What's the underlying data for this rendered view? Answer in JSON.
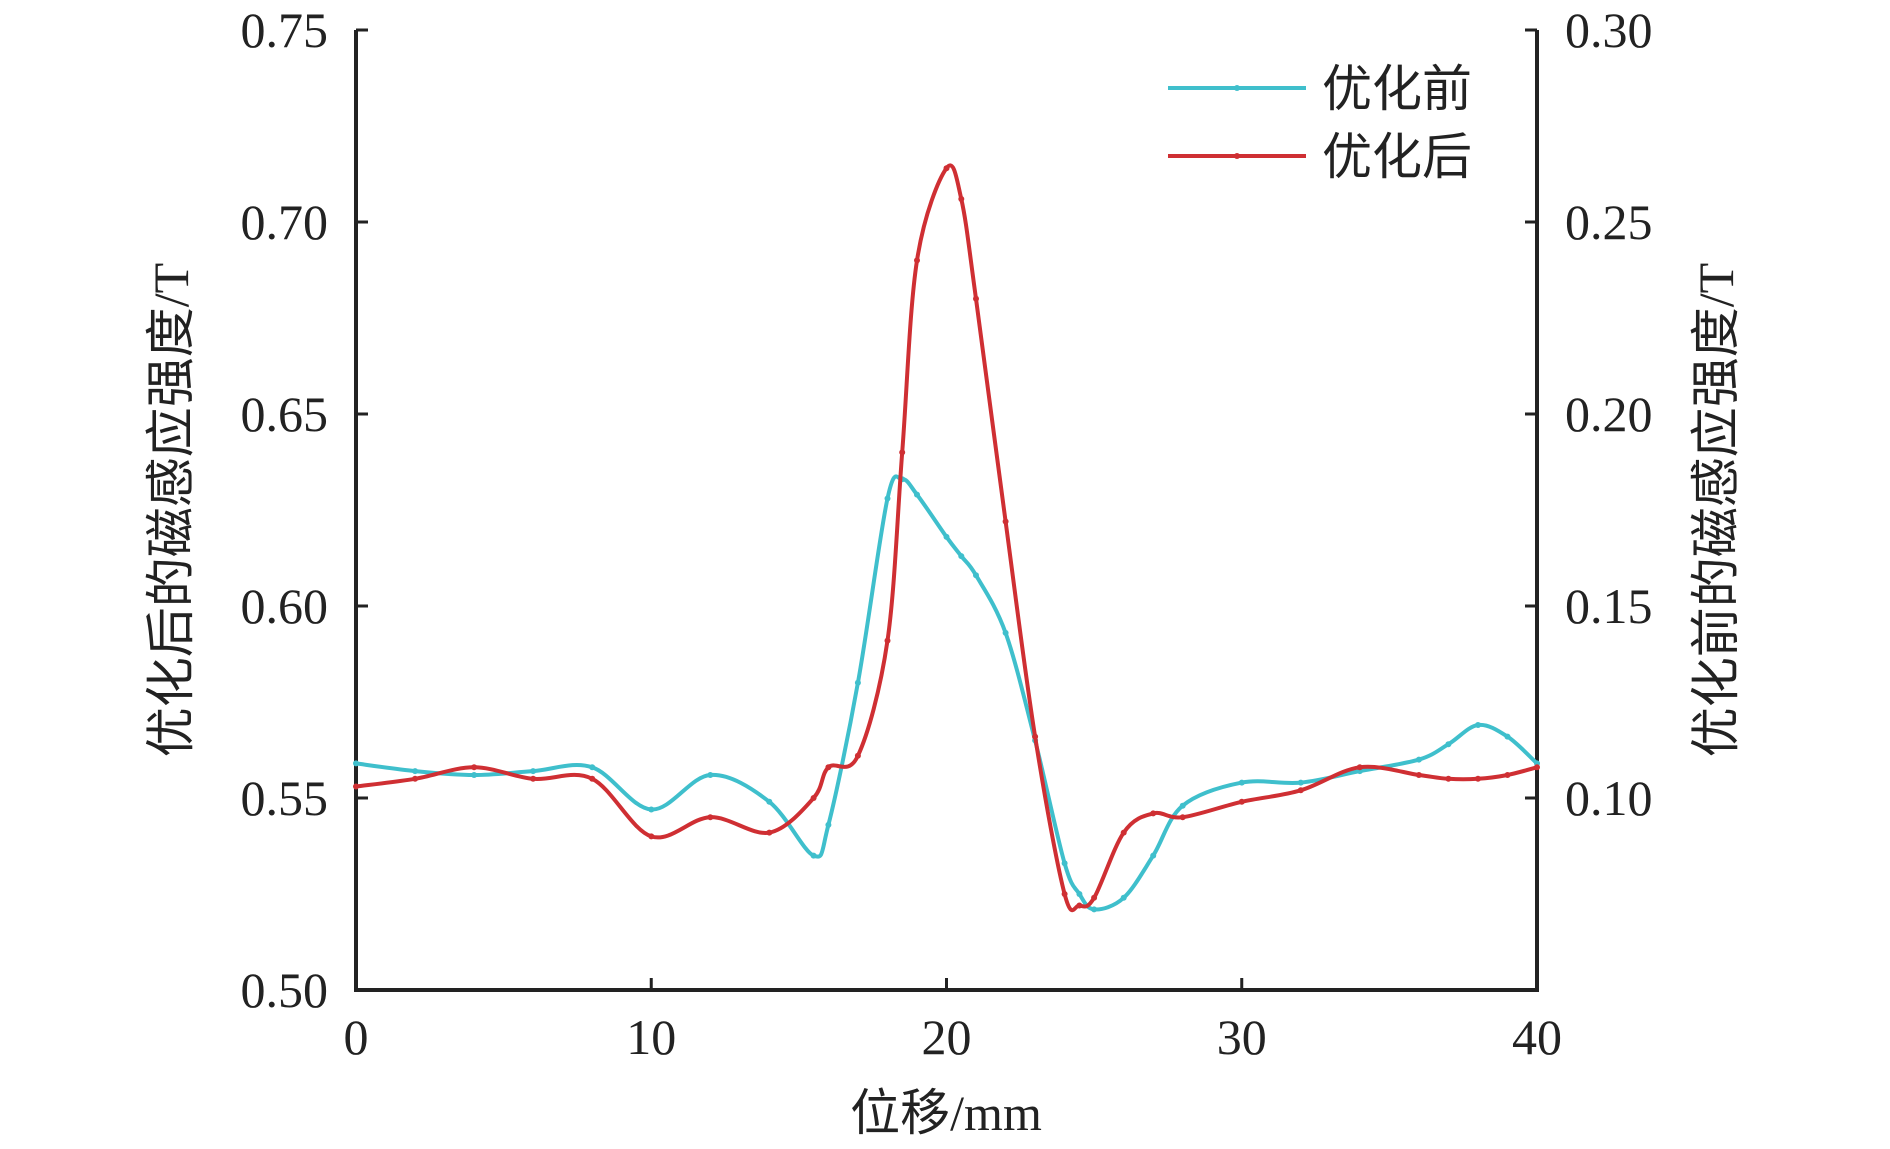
{
  "chart_data": {
    "type": "line",
    "x": [
      0,
      2,
      4,
      6,
      8,
      10,
      12,
      14,
      15.5,
      16,
      17,
      18,
      18.5,
      19,
      20,
      20.5,
      21,
      22,
      23,
      24,
      24.5,
      25,
      26,
      27,
      28,
      30,
      32,
      34,
      36,
      37,
      38,
      39,
      40
    ],
    "xlabel": "位移/mm",
    "ylabel": "优化后的磁感应强度/T",
    "y2label": "优化前的磁感应强度/T",
    "xlim": [
      0,
      40
    ],
    "ylim": [
      0.5,
      0.75
    ],
    "y2lim": [
      0.05,
      0.3
    ],
    "xticks": [
      "0",
      "10",
      "20",
      "30",
      "40"
    ],
    "yticks": [
      "0.50",
      "0.55",
      "0.60",
      "0.65",
      "0.70",
      "0.75"
    ],
    "y2ticks": [
      "0.10",
      "0.15",
      "0.20",
      "0.25",
      "0.30"
    ],
    "legend_position": "top-right",
    "grid": false,
    "series": [
      {
        "name": "优化前",
        "axis": "right",
        "color": "#3fbfcc",
        "values": [
          0.109,
          0.107,
          0.106,
          0.107,
          0.108,
          0.097,
          0.106,
          0.099,
          0.085,
          0.093,
          0.13,
          0.178,
          0.183,
          0.179,
          0.168,
          0.163,
          0.158,
          0.143,
          0.115,
          0.083,
          0.075,
          0.071,
          0.074,
          0.085,
          0.098,
          0.104,
          0.104,
          0.107,
          0.11,
          0.114,
          0.119,
          0.116,
          0.109
        ]
      },
      {
        "name": "优化后",
        "axis": "left",
        "color": "#cf2f33",
        "values": [
          0.553,
          0.555,
          0.558,
          0.555,
          0.555,
          0.54,
          0.545,
          0.541,
          0.55,
          0.558,
          0.561,
          0.591,
          0.64,
          0.69,
          0.714,
          0.706,
          0.68,
          0.622,
          0.566,
          0.525,
          0.522,
          0.524,
          0.541,
          0.546,
          0.545,
          0.549,
          0.552,
          0.558,
          0.556,
          0.555,
          0.555,
          0.556,
          0.558
        ]
      }
    ]
  }
}
